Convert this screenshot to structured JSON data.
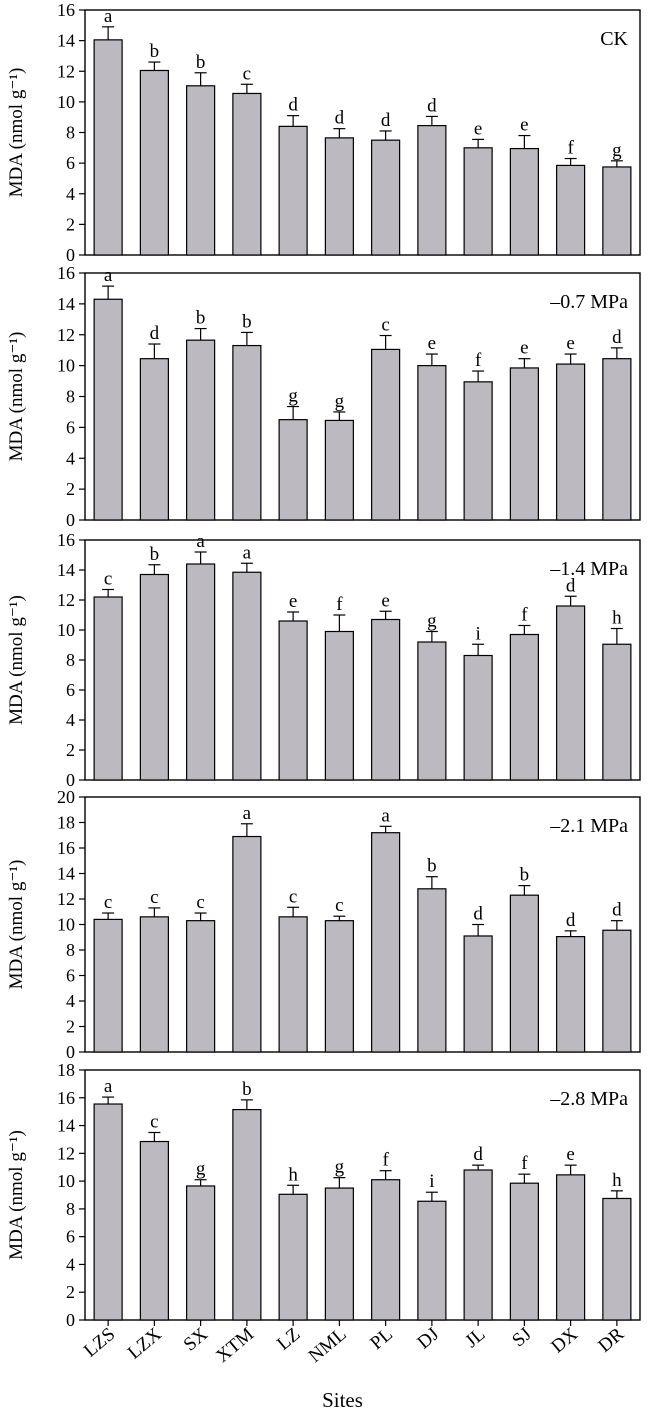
{
  "chart_data": [
    {
      "type": "bar",
      "panel_label": "CK",
      "ylabel": "MDA (nmol g⁻¹)",
      "ylim": [
        0,
        16
      ],
      "yticks": [
        0,
        2,
        4,
        6,
        8,
        10,
        12,
        14,
        16
      ],
      "categories": [
        "LZS",
        "LZX",
        "SX",
        "XTM",
        "LZ",
        "NML",
        "PL",
        "DJ",
        "JL",
        "SJ",
        "DX",
        "DR"
      ],
      "values": [
        14.05,
        12.05,
        11.05,
        10.55,
        8.4,
        7.65,
        7.5,
        8.45,
        7.0,
        6.95,
        5.85,
        5.75
      ],
      "errors": [
        0.85,
        0.55,
        0.85,
        0.6,
        0.7,
        0.6,
        0.6,
        0.6,
        0.55,
        0.85,
        0.45,
        0.4
      ],
      "letters": [
        "a",
        "b",
        "b",
        "c",
        "d",
        "d",
        "d",
        "d",
        "e",
        "e",
        "f",
        "g"
      ]
    },
    {
      "type": "bar",
      "panel_label": "–0.7 MPa",
      "ylabel": "MDA (nmol g⁻¹)",
      "ylim": [
        0,
        16
      ],
      "yticks": [
        0,
        2,
        4,
        6,
        8,
        10,
        12,
        14,
        16
      ],
      "categories": [
        "LZS",
        "LZX",
        "SX",
        "XTM",
        "LZ",
        "NML",
        "PL",
        "DJ",
        "JL",
        "SJ",
        "DX",
        "DR"
      ],
      "values": [
        14.3,
        10.45,
        11.65,
        11.3,
        6.5,
        6.45,
        11.05,
        10.0,
        8.95,
        9.85,
        10.1,
        10.45
      ],
      "errors": [
        0.85,
        0.95,
        0.75,
        0.85,
        0.85,
        0.55,
        0.9,
        0.75,
        0.7,
        0.6,
        0.65,
        0.7
      ],
      "letters": [
        "a",
        "d",
        "b",
        "b",
        "g",
        "g",
        "c",
        "e",
        "f",
        "e",
        "e",
        "d"
      ]
    },
    {
      "type": "bar",
      "panel_label": "–1.4 MPa",
      "ylabel": "MDA (nmol g⁻¹)",
      "ylim": [
        0,
        16
      ],
      "yticks": [
        0,
        2,
        4,
        6,
        8,
        10,
        12,
        14,
        16
      ],
      "categories": [
        "LZS",
        "LZX",
        "SX",
        "XTM",
        "LZ",
        "NML",
        "PL",
        "DJ",
        "JL",
        "SJ",
        "DX",
        "DR"
      ],
      "values": [
        12.2,
        13.7,
        14.4,
        13.85,
        10.6,
        9.9,
        10.7,
        9.2,
        8.3,
        9.7,
        11.6,
        9.05
      ],
      "errors": [
        0.5,
        0.65,
        0.8,
        0.6,
        0.6,
        1.1,
        0.55,
        0.7,
        0.75,
        0.6,
        0.65,
        1.05
      ],
      "letters": [
        "c",
        "b",
        "a",
        "a",
        "e",
        "f",
        "e",
        "g",
        "i",
        "f",
        "d",
        "h"
      ]
    },
    {
      "type": "bar",
      "panel_label": "–2.1 MPa",
      "ylabel": "MDA (nmol g⁻¹)",
      "ylim": [
        0,
        20
      ],
      "yticks": [
        0,
        2,
        4,
        6,
        8,
        10,
        12,
        14,
        16,
        18,
        20
      ],
      "categories": [
        "LZS",
        "LZX",
        "SX",
        "XTM",
        "LZ",
        "NML",
        "PL",
        "DJ",
        "JL",
        "SJ",
        "DX",
        "DR"
      ],
      "values": [
        10.4,
        10.6,
        10.3,
        16.9,
        10.6,
        10.3,
        17.2,
        12.8,
        9.1,
        12.3,
        9.05,
        9.55
      ],
      "errors": [
        0.5,
        0.7,
        0.6,
        1.0,
        0.75,
        0.35,
        0.5,
        0.95,
        0.9,
        0.75,
        0.45,
        0.75
      ],
      "letters": [
        "c",
        "c",
        "c",
        "a",
        "c",
        "c",
        "a",
        "b",
        "d",
        "b",
        "d",
        "d"
      ]
    },
    {
      "type": "bar",
      "panel_label": "–2.8 MPa",
      "ylabel": "MDA (nmol g⁻¹)",
      "xlabel": "Sites",
      "ylim": [
        0,
        18
      ],
      "yticks": [
        0,
        2,
        4,
        6,
        8,
        10,
        12,
        14,
        16,
        18
      ],
      "categories": [
        "LZS",
        "LZX",
        "SX",
        "XTM",
        "LZ",
        "NML",
        "PL",
        "DJ",
        "JL",
        "SJ",
        "DX",
        "DR"
      ],
      "values": [
        15.55,
        12.85,
        9.65,
        15.15,
        9.05,
        9.5,
        10.1,
        8.55,
        10.8,
        9.85,
        10.45,
        8.75
      ],
      "errors": [
        0.5,
        0.65,
        0.45,
        0.7,
        0.65,
        0.75,
        0.65,
        0.65,
        0.35,
        0.65,
        0.7,
        0.55
      ],
      "letters": [
        "a",
        "c",
        "g",
        "b",
        "h",
        "g",
        "f",
        "i",
        "d",
        "f",
        "e",
        "h"
      ]
    }
  ]
}
